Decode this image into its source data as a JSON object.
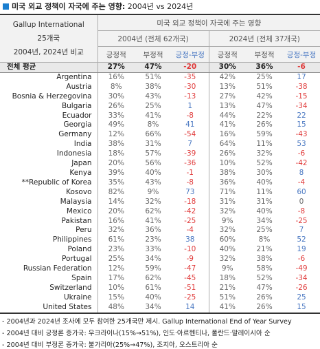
{
  "title": {
    "main": "미국 외교 정책이 자국에 주는 영향:",
    "sub": "2004년 vs 2024년"
  },
  "table": {
    "corner": [
      "Gallup International",
      "25개국",
      "2004년, 2024년 비교"
    ],
    "header": "미국 외교 정책이 자국에 주는 영향",
    "groups": [
      "2004년 (전체 62개국)",
      "2024년 (전체 37개국)"
    ],
    "columns": [
      "긍정적",
      "부정적",
      "긍정-부정",
      "긍정적",
      "부정적",
      "긍정-부정"
    ],
    "rows": [
      [
        "전체 평균",
        "27%",
        "47%",
        -20,
        "30%",
        "36%",
        -6
      ],
      [
        "Argentina",
        "16%",
        "51%",
        -35,
        "42%",
        "25%",
        17
      ],
      [
        "Austria",
        "8%",
        "38%",
        -30,
        "13%",
        "51%",
        -38
      ],
      [
        "Bosnia & Herzegovina",
        "30%",
        "43%",
        -13,
        "27%",
        "42%",
        -15
      ],
      [
        "Bulgaria",
        "26%",
        "25%",
        1,
        "13%",
        "47%",
        -34
      ],
      [
        "Ecuador",
        "33%",
        "41%",
        -8,
        "44%",
        "22%",
        22
      ],
      [
        "Georgia",
        "49%",
        "8%",
        41,
        "41%",
        "26%",
        15
      ],
      [
        "Germany",
        "12%",
        "66%",
        -54,
        "16%",
        "59%",
        -43
      ],
      [
        "India",
        "38%",
        "31%",
        7,
        "64%",
        "11%",
        53
      ],
      [
        "Indonesia",
        "18%",
        "57%",
        -39,
        "26%",
        "32%",
        -6
      ],
      [
        "Japan",
        "20%",
        "56%",
        -36,
        "10%",
        "52%",
        -42
      ],
      [
        "Kenya",
        "39%",
        "40%",
        -1,
        "38%",
        "30%",
        8
      ],
      [
        "**Republic of Korea",
        "35%",
        "43%",
        -8,
        "36%",
        "40%",
        -4
      ],
      [
        "Kosovo",
        "82%",
        "9%",
        73,
        "71%",
        "11%",
        60
      ],
      [
        "Malaysia",
        "14%",
        "32%",
        -18,
        "31%",
        "31%",
        0
      ],
      [
        "Mexico",
        "20%",
        "62%",
        -42,
        "32%",
        "40%",
        -8
      ],
      [
        "Pakistan",
        "16%",
        "41%",
        -25,
        "9%",
        "34%",
        -25
      ],
      [
        "Peru",
        "32%",
        "36%",
        -4,
        "32%",
        "25%",
        7
      ],
      [
        "Philippines",
        "61%",
        "23%",
        38,
        "60%",
        "8%",
        52
      ],
      [
        "Poland",
        "23%",
        "33%",
        -10,
        "40%",
        "21%",
        19
      ],
      [
        "Portugal",
        "25%",
        "34%",
        -9,
        "32%",
        "38%",
        -6
      ],
      [
        "Russian Federation",
        "12%",
        "59%",
        -47,
        "9%",
        "58%",
        -49
      ],
      [
        "Spain",
        "17%",
        "62%",
        -45,
        "18%",
        "52%",
        -34
      ],
      [
        "Switzerland",
        "10%",
        "61%",
        -51,
        "21%",
        "47%",
        -26
      ],
      [
        "Ukraine",
        "15%",
        "40%",
        -25,
        "51%",
        "26%",
        25
      ],
      [
        "United States",
        "48%",
        "34%",
        14,
        "41%",
        "26%",
        15
      ]
    ]
  },
  "notes": [
    "- 2004년과 2024년 조사에 모두 참여한 25개국만 제시. Gallup International End of Year Survey",
    "- 2004년 대비 긍정론 증가국: 우크라이나(15%→51%), 인도·아르헨티나, 폴란드·말레이시아 순",
    "- 2004년 대비 부정론 증가국: 불가리아(25%→47%), 조지아, 오스트리아 순"
  ]
}
